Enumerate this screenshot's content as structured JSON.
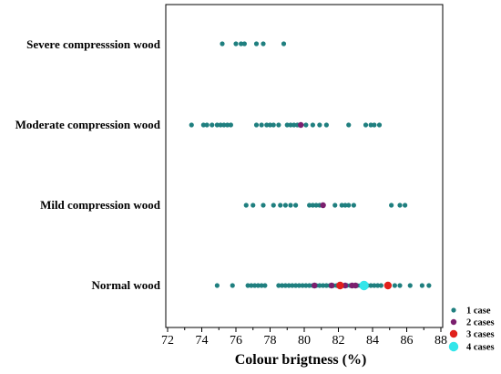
{
  "chart_data": {
    "type": "scatter",
    "title": "",
    "xlabel": "Colour brigtness (%)",
    "ylabel": "",
    "xlim": [
      72,
      88
    ],
    "xticks": [
      72,
      74,
      76,
      78,
      80,
      82,
      84,
      86,
      88
    ],
    "grid": false,
    "legend_position": "bottom-right",
    "categories": [
      "Severe compresssion wood",
      "Moderate compression wood",
      "Mild compression wood",
      "Normal wood"
    ],
    "legend": [
      {
        "name": "1 case",
        "count": 1,
        "color": "#1f7f7f"
      },
      {
        "name": "2 cases",
        "count": 2,
        "color": "#7b1f6e"
      },
      {
        "name": "3 cases",
        "count": 3,
        "color": "#e0201b"
      },
      {
        "name": "4 cases",
        "count": 4,
        "color": "#33e6ea"
      }
    ],
    "series": [
      {
        "category": "Severe compresssion wood",
        "points": [
          {
            "x": 75.2,
            "count": 1
          },
          {
            "x": 76.0,
            "count": 1
          },
          {
            "x": 76.3,
            "count": 1
          },
          {
            "x": 76.5,
            "count": 1
          },
          {
            "x": 77.2,
            "count": 1
          },
          {
            "x": 77.6,
            "count": 1
          },
          {
            "x": 78.8,
            "count": 1
          }
        ]
      },
      {
        "category": "Moderate compression wood",
        "points": [
          {
            "x": 73.4,
            "count": 1
          },
          {
            "x": 74.1,
            "count": 1
          },
          {
            "x": 74.3,
            "count": 1
          },
          {
            "x": 74.6,
            "count": 1
          },
          {
            "x": 74.9,
            "count": 1
          },
          {
            "x": 75.1,
            "count": 1
          },
          {
            "x": 75.3,
            "count": 1
          },
          {
            "x": 75.5,
            "count": 1
          },
          {
            "x": 75.7,
            "count": 1
          },
          {
            "x": 77.2,
            "count": 1
          },
          {
            "x": 77.5,
            "count": 1
          },
          {
            "x": 77.8,
            "count": 1
          },
          {
            "x": 78.0,
            "count": 1
          },
          {
            "x": 78.2,
            "count": 1
          },
          {
            "x": 78.5,
            "count": 1
          },
          {
            "x": 79.0,
            "count": 1
          },
          {
            "x": 79.2,
            "count": 1
          },
          {
            "x": 79.4,
            "count": 1
          },
          {
            "x": 79.6,
            "count": 1
          },
          {
            "x": 79.8,
            "count": 2
          },
          {
            "x": 80.1,
            "count": 1
          },
          {
            "x": 80.5,
            "count": 1
          },
          {
            "x": 80.9,
            "count": 1
          },
          {
            "x": 81.3,
            "count": 1
          },
          {
            "x": 82.6,
            "count": 1
          },
          {
            "x": 83.6,
            "count": 1
          },
          {
            "x": 83.9,
            "count": 1
          },
          {
            "x": 84.1,
            "count": 1
          },
          {
            "x": 84.4,
            "count": 1
          }
        ]
      },
      {
        "category": "Mild compression wood",
        "points": [
          {
            "x": 76.6,
            "count": 1
          },
          {
            "x": 77.0,
            "count": 1
          },
          {
            "x": 77.6,
            "count": 1
          },
          {
            "x": 78.2,
            "count": 1
          },
          {
            "x": 78.6,
            "count": 1
          },
          {
            "x": 78.9,
            "count": 1
          },
          {
            "x": 79.2,
            "count": 1
          },
          {
            "x": 79.5,
            "count": 1
          },
          {
            "x": 80.3,
            "count": 1
          },
          {
            "x": 80.5,
            "count": 1
          },
          {
            "x": 80.7,
            "count": 1
          },
          {
            "x": 80.9,
            "count": 1
          },
          {
            "x": 81.1,
            "count": 2
          },
          {
            "x": 81.8,
            "count": 1
          },
          {
            "x": 82.2,
            "count": 1
          },
          {
            "x": 82.4,
            "count": 1
          },
          {
            "x": 82.6,
            "count": 1
          },
          {
            "x": 82.9,
            "count": 1
          },
          {
            "x": 85.1,
            "count": 1
          },
          {
            "x": 85.6,
            "count": 1
          },
          {
            "x": 85.9,
            "count": 1
          }
        ]
      },
      {
        "category": "Normal wood",
        "points": [
          {
            "x": 74.9,
            "count": 1
          },
          {
            "x": 75.8,
            "count": 1
          },
          {
            "x": 76.7,
            "count": 1
          },
          {
            "x": 76.9,
            "count": 1
          },
          {
            "x": 77.1,
            "count": 1
          },
          {
            "x": 77.3,
            "count": 1
          },
          {
            "x": 77.5,
            "count": 1
          },
          {
            "x": 77.7,
            "count": 1
          },
          {
            "x": 78.5,
            "count": 1
          },
          {
            "x": 78.7,
            "count": 1
          },
          {
            "x": 78.9,
            "count": 1
          },
          {
            "x": 79.1,
            "count": 1
          },
          {
            "x": 79.3,
            "count": 1
          },
          {
            "x": 79.5,
            "count": 1
          },
          {
            "x": 79.7,
            "count": 1
          },
          {
            "x": 79.9,
            "count": 1
          },
          {
            "x": 80.1,
            "count": 1
          },
          {
            "x": 80.3,
            "count": 1
          },
          {
            "x": 80.5,
            "count": 1
          },
          {
            "x": 80.7,
            "count": 1
          },
          {
            "x": 80.9,
            "count": 1
          },
          {
            "x": 81.1,
            "count": 1
          },
          {
            "x": 81.3,
            "count": 1
          },
          {
            "x": 81.5,
            "count": 1
          },
          {
            "x": 81.7,
            "count": 1
          },
          {
            "x": 81.9,
            "count": 1
          },
          {
            "x": 82.1,
            "count": 1
          },
          {
            "x": 82.3,
            "count": 1
          },
          {
            "x": 82.5,
            "count": 1
          },
          {
            "x": 82.7,
            "count": 1
          },
          {
            "x": 82.9,
            "count": 1
          },
          {
            "x": 83.1,
            "count": 1
          },
          {
            "x": 83.3,
            "count": 1
          },
          {
            "x": 83.7,
            "count": 1
          },
          {
            "x": 83.9,
            "count": 1
          },
          {
            "x": 84.1,
            "count": 1
          },
          {
            "x": 84.3,
            "count": 1
          },
          {
            "x": 84.5,
            "count": 1
          },
          {
            "x": 85.3,
            "count": 1
          },
          {
            "x": 85.6,
            "count": 1
          },
          {
            "x": 86.2,
            "count": 1
          },
          {
            "x": 86.9,
            "count": 1
          },
          {
            "x": 87.3,
            "count": 1
          },
          {
            "x": 80.6,
            "count": 2
          },
          {
            "x": 81.6,
            "count": 2
          },
          {
            "x": 82.4,
            "count": 2
          },
          {
            "x": 82.8,
            "count": 2
          },
          {
            "x": 83.0,
            "count": 2
          },
          {
            "x": 82.1,
            "count": 3
          },
          {
            "x": 84.9,
            "count": 3
          },
          {
            "x": 83.5,
            "count": 4
          }
        ]
      }
    ]
  }
}
